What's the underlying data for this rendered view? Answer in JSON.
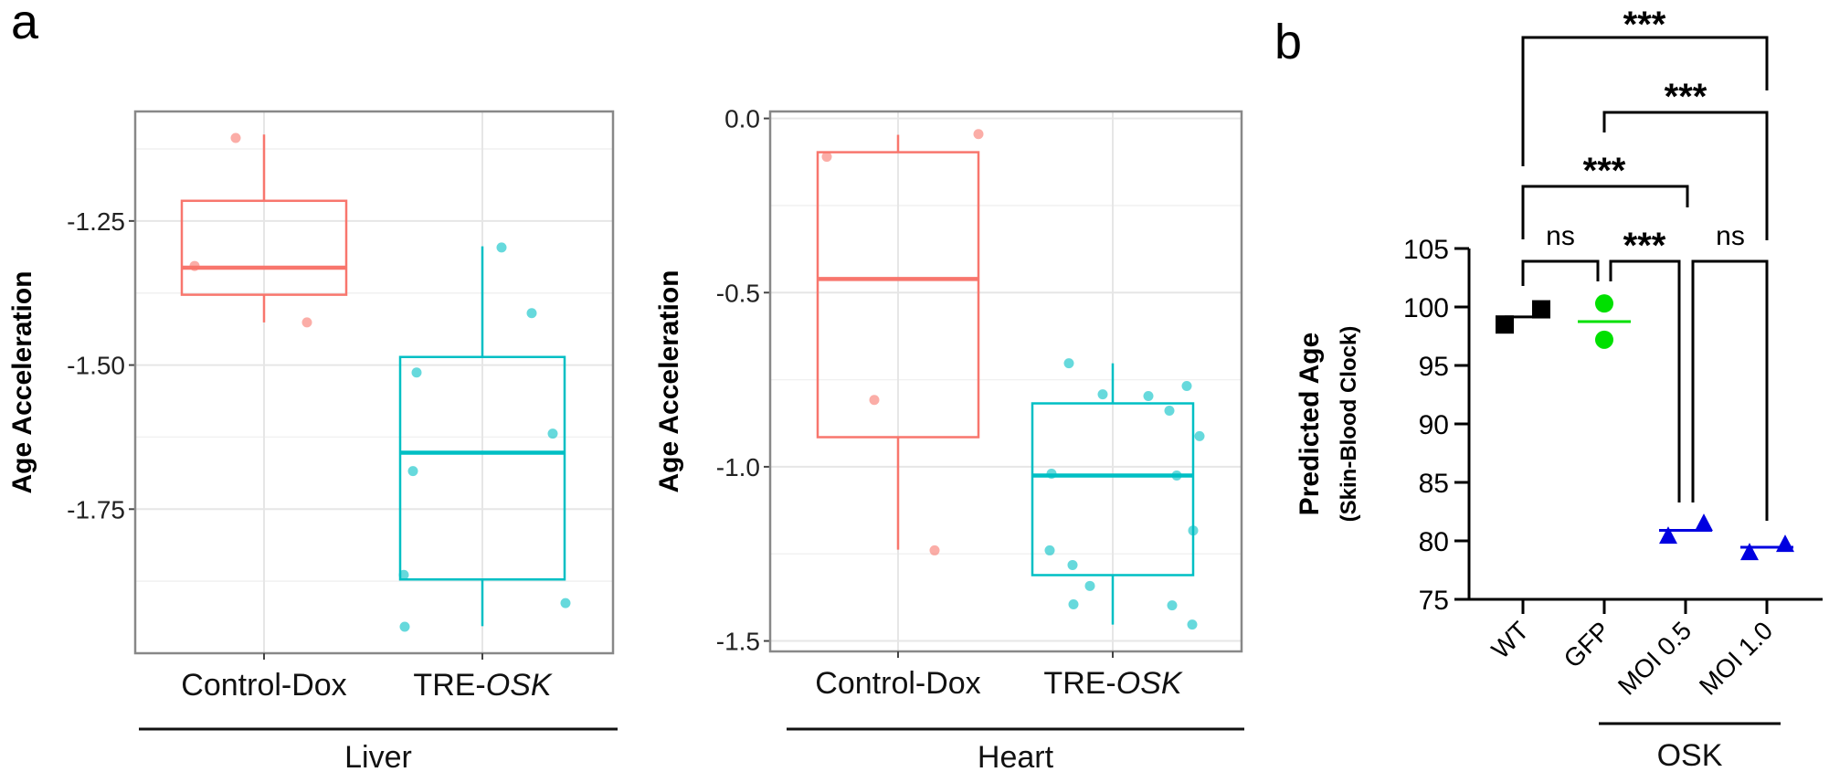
{
  "panels": {
    "a": "a",
    "b": "b"
  },
  "colors": {
    "control": "#F8766D",
    "treatment": "#00BFC4",
    "wt": "#000000",
    "gfp": "#00E000",
    "osk": "#0000E0"
  },
  "chart_data": [
    {
      "type": "box",
      "group_label": "Liver",
      "ylabel": "Age Acceleration",
      "xlabel": "",
      "ylim": [
        -2.0,
        -1.06
      ],
      "yticks": [
        -1.25,
        -1.5,
        -1.75
      ],
      "ytick_labels": [
        "-1.25",
        "-1.50",
        "-1.75"
      ],
      "grid": true,
      "categories": [
        "Control-Dox",
        "TRE-OSK"
      ],
      "italic_part": "OSK",
      "boxes": [
        {
          "whisker_high": -1.1,
          "q3": -1.215,
          "median": -1.331,
          "q1": -1.378,
          "whisker_low": -1.426,
          "points": [
            -1.106,
            -1.328,
            -1.426
          ]
        },
        {
          "whisker_high": -1.294,
          "q3": -1.486,
          "median": -1.652,
          "q1": -1.872,
          "whisker_low": -1.953,
          "points": [
            -1.296,
            -1.41,
            -1.513,
            -1.684,
            -1.619,
            -1.864,
            -1.954,
            -1.913
          ]
        }
      ]
    },
    {
      "type": "box",
      "group_label": "Heart",
      "ylabel": "Age Acceleration",
      "xlabel": "",
      "ylim": [
        -1.53,
        0.02
      ],
      "yticks": [
        0.0,
        -0.5,
        -1.0,
        -1.5
      ],
      "ytick_labels": [
        "0.0",
        "-0.5",
        "-1.0",
        "-1.5"
      ],
      "grid": true,
      "categories": [
        "Control-Dox",
        "TRE-OSK"
      ],
      "italic_part": "OSK",
      "boxes": [
        {
          "whisker_high": -0.047,
          "q3": -0.097,
          "median": -0.461,
          "q1": -0.915,
          "whisker_low": -1.238,
          "points": [
            -0.11,
            -0.045,
            -0.808,
            -1.24
          ]
        },
        {
          "whisker_high": -0.703,
          "q3": -0.818,
          "median": -1.025,
          "q1": -1.311,
          "whisker_low": -1.453,
          "points": [
            -0.703,
            -0.792,
            -0.797,
            -0.768,
            -0.839,
            -0.912,
            -1.02,
            -1.025,
            -1.183,
            -1.24,
            -1.282,
            -1.342,
            -1.395,
            -1.398,
            -1.453
          ]
        }
      ]
    },
    {
      "type": "scatter",
      "ylabel": "Predicted Age",
      "ylabel_sub": "(Skin-Blood Clock)",
      "ylim": [
        75,
        105
      ],
      "yticks": [
        105,
        100,
        95,
        90,
        85,
        80,
        75
      ],
      "grid": false,
      "categories": [
        "WT",
        "GFP",
        "MOI 0.5",
        "MOI 1.0"
      ],
      "group_label": {
        "text": "OSK",
        "spans": [
          "MOI 0.5",
          "MOI 1.0"
        ]
      },
      "series": [
        {
          "category": "WT",
          "marker": "square",
          "color": "#000000",
          "values": [
            98.5,
            99.8
          ],
          "mean": 99.15
        },
        {
          "category": "GFP",
          "marker": "circle",
          "color": "#00E000",
          "values": [
            100.3,
            97.2
          ],
          "mean": 98.75
        },
        {
          "category": "MOI 0.5",
          "marker": "triangle",
          "color": "#0000E0",
          "values": [
            80.3,
            81.4
          ],
          "mean": 80.9
        },
        {
          "category": "MOI 1.0",
          "marker": "triangle",
          "color": "#0000E0",
          "values": [
            78.9,
            79.6
          ],
          "mean": 79.45
        }
      ],
      "comparisons": [
        {
          "from": "WT",
          "to": "MOI 1.0",
          "label": "***"
        },
        {
          "from": "GFP",
          "to": "MOI 1.0",
          "label": "***"
        },
        {
          "from": "WT",
          "to": "MOI 0.5",
          "label": "***"
        },
        {
          "from": "WT",
          "to": "GFP",
          "label": "ns"
        },
        {
          "from": "GFP",
          "to": "MOI 0.5",
          "label": "***"
        },
        {
          "from": "MOI 0.5",
          "to": "MOI 1.0",
          "label": "ns"
        }
      ]
    }
  ]
}
